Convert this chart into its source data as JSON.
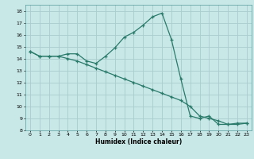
{
  "xlabel": "Humidex (Indice chaleur)",
  "background_color": "#c8e8e8",
  "grid_color": "#b0d4d4",
  "line_color": "#2a7a6a",
  "xlim": [
    -0.5,
    23.5
  ],
  "ylim": [
    8,
    18.5
  ],
  "yticks": [
    8,
    9,
    10,
    11,
    12,
    13,
    14,
    15,
    16,
    17,
    18
  ],
  "xticks": [
    0,
    1,
    2,
    3,
    4,
    5,
    6,
    7,
    8,
    9,
    10,
    11,
    12,
    13,
    14,
    15,
    16,
    17,
    18,
    19,
    20,
    21,
    22,
    23
  ],
  "line1_x": [
    0,
    1,
    2,
    3,
    4,
    5,
    6,
    7,
    8,
    9,
    10,
    11,
    12,
    13,
    14,
    15,
    16,
    17,
    18,
    19,
    20,
    21,
    22,
    23
  ],
  "line1_y": [
    14.6,
    14.2,
    14.2,
    14.2,
    14.4,
    14.4,
    13.8,
    13.6,
    14.2,
    14.9,
    15.8,
    16.2,
    16.8,
    17.5,
    17.8,
    15.6,
    12.3,
    9.2,
    9.0,
    9.2,
    8.5,
    8.5,
    8.6,
    8.6
  ],
  "line2_x": [
    0,
    1,
    2,
    3,
    4,
    5,
    6,
    7,
    8,
    9,
    10,
    11,
    12,
    13,
    14,
    15,
    16,
    17,
    18,
    19,
    20,
    21,
    22,
    23
  ],
  "line2_y": [
    14.6,
    14.2,
    14.2,
    14.2,
    14.0,
    13.8,
    13.5,
    13.2,
    12.9,
    12.6,
    12.3,
    12.0,
    11.7,
    11.4,
    11.1,
    10.8,
    10.5,
    10.0,
    9.2,
    9.0,
    8.8,
    8.5,
    8.5,
    8.6
  ]
}
